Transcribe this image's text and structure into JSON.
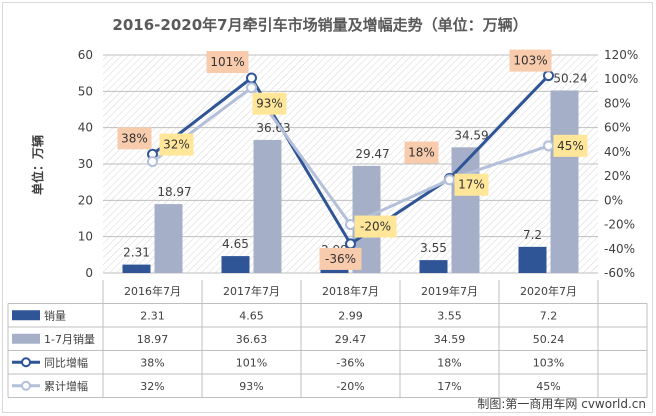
{
  "chart_data": {
    "type": "bar",
    "title": "2016-2020年7月牵引车市场销量及增幅走势（单位：万辆）",
    "ylabel": "单位：万辆",
    "ylim": [
      0,
      60
    ],
    "y2lim": [
      -60,
      120
    ],
    "yticks": [
      0,
      10,
      20,
      30,
      40,
      50,
      60
    ],
    "y2ticks": [
      "-60%",
      "-40%",
      "-20%",
      "0%",
      "20%",
      "40%",
      "60%",
      "80%",
      "100%",
      "120%"
    ],
    "categories": [
      "2016年7月",
      "2017年7月",
      "2018年7月",
      "2019年7月",
      "2020年7月"
    ],
    "series": [
      {
        "name": "销量",
        "kind": "bar",
        "axis": "left",
        "color": "#2f5597",
        "values": [
          2.31,
          4.65,
          2.99,
          3.55,
          7.2
        ],
        "labels": [
          "2.31",
          "4.65",
          "2.99",
          "3.55",
          "7.2"
        ]
      },
      {
        "name": "1-7月销量",
        "kind": "bar",
        "axis": "left",
        "color": "#a5b0c8",
        "values": [
          18.97,
          36.63,
          29.47,
          34.59,
          50.24
        ],
        "labels": [
          "18.97",
          "36.63",
          "29.47",
          "34.59",
          "50.24"
        ]
      },
      {
        "name": "同比增幅",
        "kind": "line",
        "axis": "right",
        "color": "#2f5597",
        "values": [
          38,
          101,
          -36,
          18,
          103
        ],
        "labels": [
          "38%",
          "101%",
          "-36%",
          "18%",
          "103%"
        ]
      },
      {
        "name": "累计增幅",
        "kind": "line",
        "axis": "right",
        "color": "#b4bfd9",
        "values": [
          32,
          93,
          -20,
          17,
          45
        ],
        "labels": [
          "32%",
          "93%",
          "-20%",
          "17%",
          "45%"
        ]
      }
    ],
    "label_colors": {
      "同比增幅": "#f8cbad",
      "累计增幅": "#ffe699"
    },
    "legend": "data-table-bottom",
    "grid": true
  },
  "watermark": "制图:第一商用车网 cvworld.cn"
}
